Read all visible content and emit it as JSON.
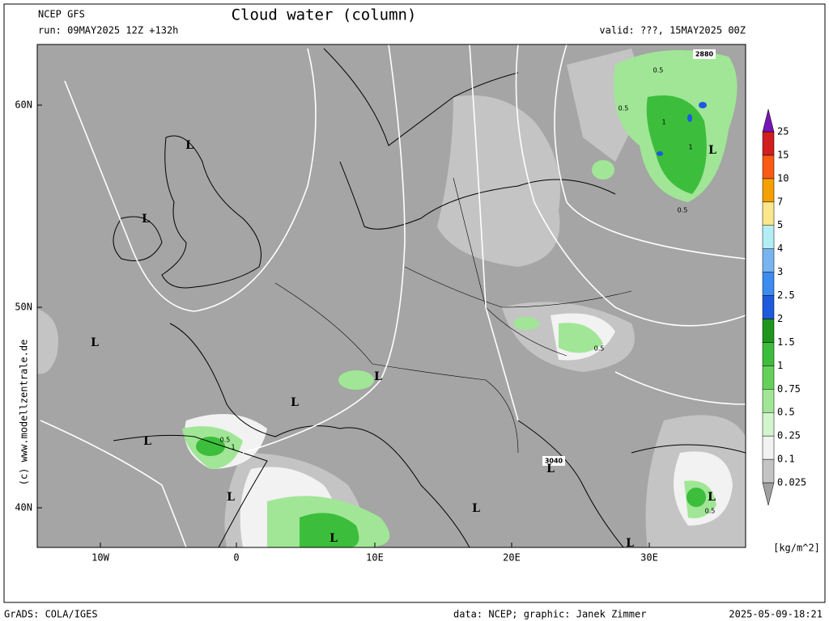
{
  "header": {
    "model": "NCEP GFS",
    "run": "run: 09MAY2025 12Z +132h",
    "title": "Cloud water (column)",
    "valid": "valid: ???, 15MAY2025 00Z"
  },
  "map": {
    "lat_labels": [
      "60N",
      "50N",
      "40N"
    ],
    "lon_labels": [
      "10W",
      "0",
      "10E",
      "20E",
      "30E"
    ],
    "contour_labels": [
      "2880",
      "3040"
    ],
    "cloud_labels": [
      "0.5",
      "0.5",
      "1",
      "1",
      "0.5",
      "0.5",
      "0.5",
      "1",
      "0.5"
    ],
    "lows": [
      "L",
      "L",
      "L",
      "L",
      "L",
      "L",
      "L",
      "L",
      "L",
      "L",
      "L",
      "L",
      "L"
    ],
    "copyright": "(c) www.modellzentrale.de"
  },
  "colorbar": {
    "levels": [
      0.025,
      0.1,
      0.25,
      0.5,
      0.75,
      1,
      1.5,
      2,
      2.5,
      3,
      4,
      5,
      7,
      10,
      15,
      25
    ],
    "colors": [
      "#a0a0a0",
      "#c4c4c4",
      "#f2f2f2",
      "#d2f5cd",
      "#a0e696",
      "#64d25a",
      "#3cbe3c",
      "#1e961e",
      "#1e5adc",
      "#3c8cf0",
      "#78b4f0",
      "#b4eef5",
      "#fae68c",
      "#f5a000",
      "#fa5a14",
      "#d21e1e",
      "#7814b4"
    ],
    "unit": "[kg/m^2]"
  },
  "footer": {
    "software": "GrADS: COLA/IGES",
    "credit": "data: NCEP; graphic: Janek Zimmer",
    "timestamp": "2025-05-09-18:21"
  }
}
